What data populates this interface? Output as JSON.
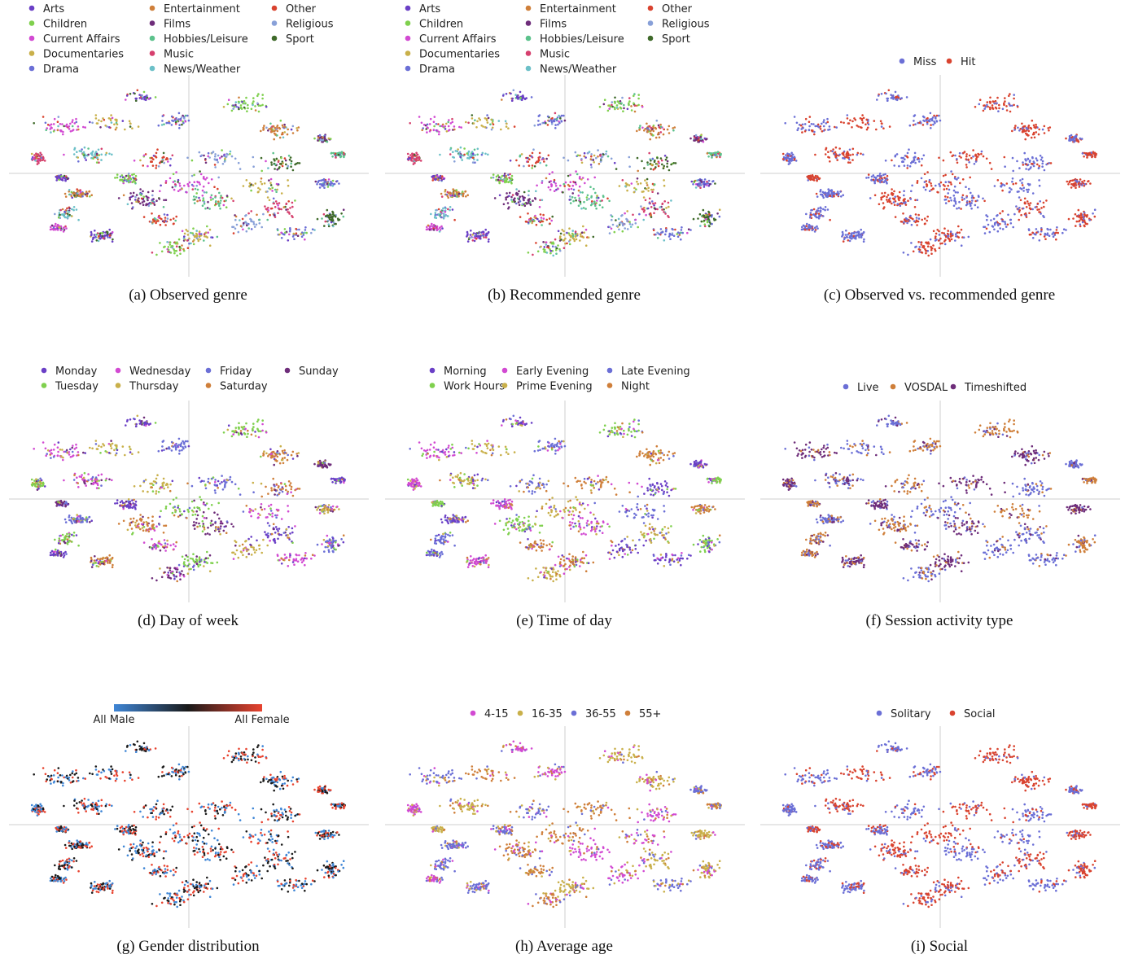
{
  "chart_data": [
    {
      "id": "a",
      "type": "scatter",
      "caption": "(a) Observed genre",
      "legend_style": "categorical",
      "legend": [
        {
          "label": "Arts",
          "color": "#6a3fc6"
        },
        {
          "label": "Children",
          "color": "#7fd04e"
        },
        {
          "label": "Current Affairs",
          "color": "#d24ad2"
        },
        {
          "label": "Documentaries",
          "color": "#c9b04a"
        },
        {
          "label": "Drama",
          "color": "#6b6fd6"
        },
        {
          "label": "Entertainment",
          "color": "#cf7f3a"
        },
        {
          "label": "Films",
          "color": "#6e2d7a"
        },
        {
          "label": "Hobbies/Leisure",
          "color": "#5cc28c"
        },
        {
          "label": "Music",
          "color": "#d6406e"
        },
        {
          "label": "News/Weather",
          "color": "#6cc0c8"
        },
        {
          "label": "Other",
          "color": "#d9432f"
        },
        {
          "label": "Religious",
          "color": "#88a0d8"
        },
        {
          "label": "Sport",
          "color": "#3f6a2a"
        }
      ],
      "axes_visible": false,
      "crosshair": true
    },
    {
      "id": "b",
      "type": "scatter",
      "caption": "(b) Recommended genre",
      "legend_style": "categorical",
      "legend": [
        {
          "label": "Arts",
          "color": "#6a3fc6"
        },
        {
          "label": "Children",
          "color": "#7fd04e"
        },
        {
          "label": "Current Affairs",
          "color": "#d24ad2"
        },
        {
          "label": "Documentaries",
          "color": "#c9b04a"
        },
        {
          "label": "Drama",
          "color": "#6b6fd6"
        },
        {
          "label": "Entertainment",
          "color": "#cf7f3a"
        },
        {
          "label": "Films",
          "color": "#6e2d7a"
        },
        {
          "label": "Hobbies/Leisure",
          "color": "#5cc28c"
        },
        {
          "label": "Music",
          "color": "#d6406e"
        },
        {
          "label": "News/Weather",
          "color": "#6cc0c8"
        },
        {
          "label": "Other",
          "color": "#d9432f"
        },
        {
          "label": "Religious",
          "color": "#88a0d8"
        },
        {
          "label": "Sport",
          "color": "#3f6a2a"
        }
      ],
      "axes_visible": false,
      "crosshair": true
    },
    {
      "id": "c",
      "type": "scatter",
      "caption": "(c) Observed vs. recommended genre",
      "legend_style": "categorical",
      "legend": [
        {
          "label": "Miss",
          "color": "#6b6fd6"
        },
        {
          "label": "Hit",
          "color": "#d9432f"
        }
      ],
      "axes_visible": false,
      "crosshair": true
    },
    {
      "id": "d",
      "type": "scatter",
      "caption": "(d) Day of week",
      "legend_style": "categorical",
      "legend": [
        {
          "label": "Monday",
          "color": "#6a3fc6"
        },
        {
          "label": "Tuesday",
          "color": "#7fd04e"
        },
        {
          "label": "Wednesday",
          "color": "#d24ad2"
        },
        {
          "label": "Thursday",
          "color": "#c9b04a"
        },
        {
          "label": "Friday",
          "color": "#6b6fd6"
        },
        {
          "label": "Saturday",
          "color": "#cf7f3a"
        },
        {
          "label": "Sunday",
          "color": "#6e2d7a"
        }
      ],
      "axes_visible": false,
      "crosshair": true
    },
    {
      "id": "e",
      "type": "scatter",
      "caption": "(e) Time of day",
      "legend_style": "categorical",
      "legend": [
        {
          "label": "Morning",
          "color": "#6a3fc6"
        },
        {
          "label": "Work Hours",
          "color": "#7fd04e"
        },
        {
          "label": "Early Evening",
          "color": "#d24ad2"
        },
        {
          "label": "Prime Evening",
          "color": "#c9b04a"
        },
        {
          "label": "Late Evening",
          "color": "#6b6fd6"
        },
        {
          "label": "Night",
          "color": "#cf7f3a"
        }
      ],
      "axes_visible": false,
      "crosshair": true
    },
    {
      "id": "f",
      "type": "scatter",
      "caption": "(f) Session activity type",
      "legend_style": "categorical",
      "legend": [
        {
          "label": "Live",
          "color": "#6b6fd6"
        },
        {
          "label": "VOSDAL",
          "color": "#cf7f3a"
        },
        {
          "label": "Timeshifted",
          "color": "#6e2d7a"
        }
      ],
      "axes_visible": false,
      "crosshair": true
    },
    {
      "id": "g",
      "type": "scatter",
      "caption": "(g) Gender distribution",
      "legend_style": "colorbar",
      "colorbar": {
        "min_label": "All Male",
        "max_label": "All Female",
        "colors": [
          "#3f86d6",
          "#1a1a1a",
          "#e8432f"
        ]
      },
      "axes_visible": false,
      "crosshair": true
    },
    {
      "id": "h",
      "type": "scatter",
      "caption": "(h) Average age",
      "legend_style": "categorical",
      "legend": [
        {
          "label": "4-15",
          "color": "#d24ad2"
        },
        {
          "label": "16-35",
          "color": "#c9b04a"
        },
        {
          "label": "36-55",
          "color": "#6b6fd6"
        },
        {
          "label": "55+",
          "color": "#cf7f3a"
        }
      ],
      "axes_visible": false,
      "crosshair": true
    },
    {
      "id": "i",
      "type": "scatter",
      "caption": "(i) Social",
      "legend_style": "categorical",
      "legend": [
        {
          "label": "Solitary",
          "color": "#6b6fd6"
        },
        {
          "label": "Social",
          "color": "#d9432f"
        }
      ],
      "axes_visible": false,
      "crosshair": true
    }
  ]
}
